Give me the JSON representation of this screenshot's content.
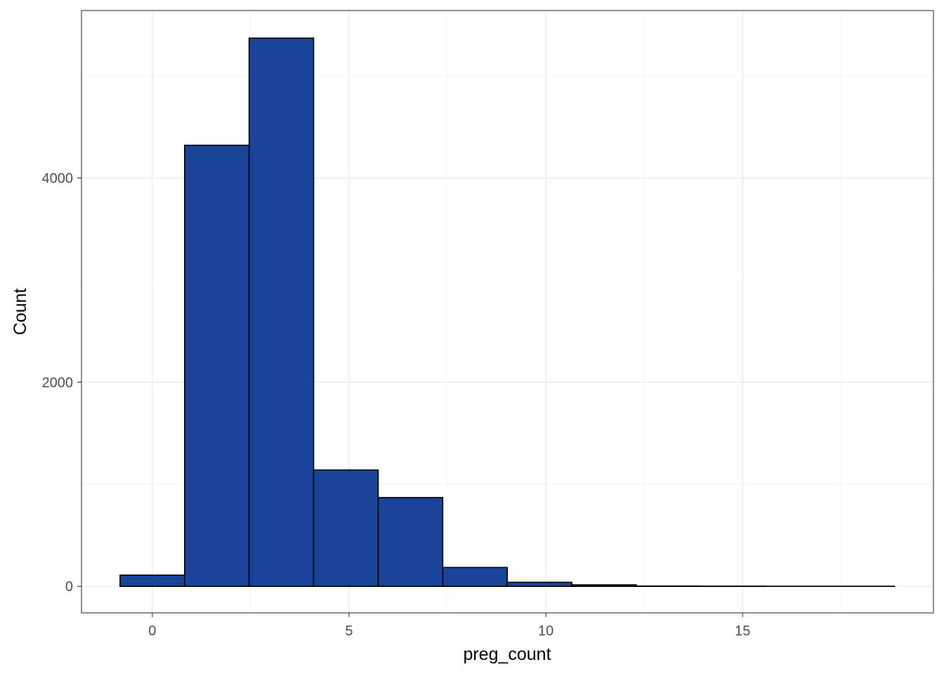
{
  "chart_data": {
    "type": "bar",
    "subtype": "histogram",
    "title": "",
    "xlabel": "preg_count",
    "ylabel": "Count",
    "bins": [
      {
        "x0": -0.82,
        "x1": 0.82,
        "count": 110
      },
      {
        "x0": 0.82,
        "x1": 2.46,
        "count": 4320
      },
      {
        "x0": 2.46,
        "x1": 4.1,
        "count": 5370
      },
      {
        "x0": 4.1,
        "x1": 5.74,
        "count": 1140
      },
      {
        "x0": 5.74,
        "x1": 7.38,
        "count": 870
      },
      {
        "x0": 7.38,
        "x1": 9.02,
        "count": 185
      },
      {
        "x0": 9.02,
        "x1": 10.66,
        "count": 40
      },
      {
        "x0": 10.66,
        "x1": 12.3,
        "count": 15
      },
      {
        "x0": 12.3,
        "x1": 13.94,
        "count": 3
      },
      {
        "x0": 13.94,
        "x1": 15.58,
        "count": 2
      },
      {
        "x0": 15.58,
        "x1": 17.22,
        "count": 1
      },
      {
        "x0": 17.22,
        "x1": 18.86,
        "count": 1
      }
    ],
    "xlim": [
      -1.8,
      19.85
    ],
    "ylim": [
      -260,
      5640
    ],
    "x_ticks": [
      0,
      5,
      10,
      15
    ],
    "x_tick_labels": [
      "0",
      "5",
      "10",
      "15"
    ],
    "y_ticks": [
      0,
      2000,
      4000
    ],
    "y_tick_labels": [
      "0",
      "2000",
      "4000"
    ],
    "x_minor_gridlines": [
      2.5,
      7.5,
      12.5,
      17.5
    ],
    "y_minor_gridlines": [
      1000,
      3000,
      5000
    ],
    "grid": true,
    "legend": "none",
    "colors": {
      "bar_fill": "#1a4499",
      "bar_outline": "#000000",
      "grid_major": "#ebebeb",
      "grid_minor": "#f4f4f4",
      "panel_border": "#333333",
      "tick_text": "#4d4d4d",
      "axis_title_text": "#000000"
    }
  }
}
